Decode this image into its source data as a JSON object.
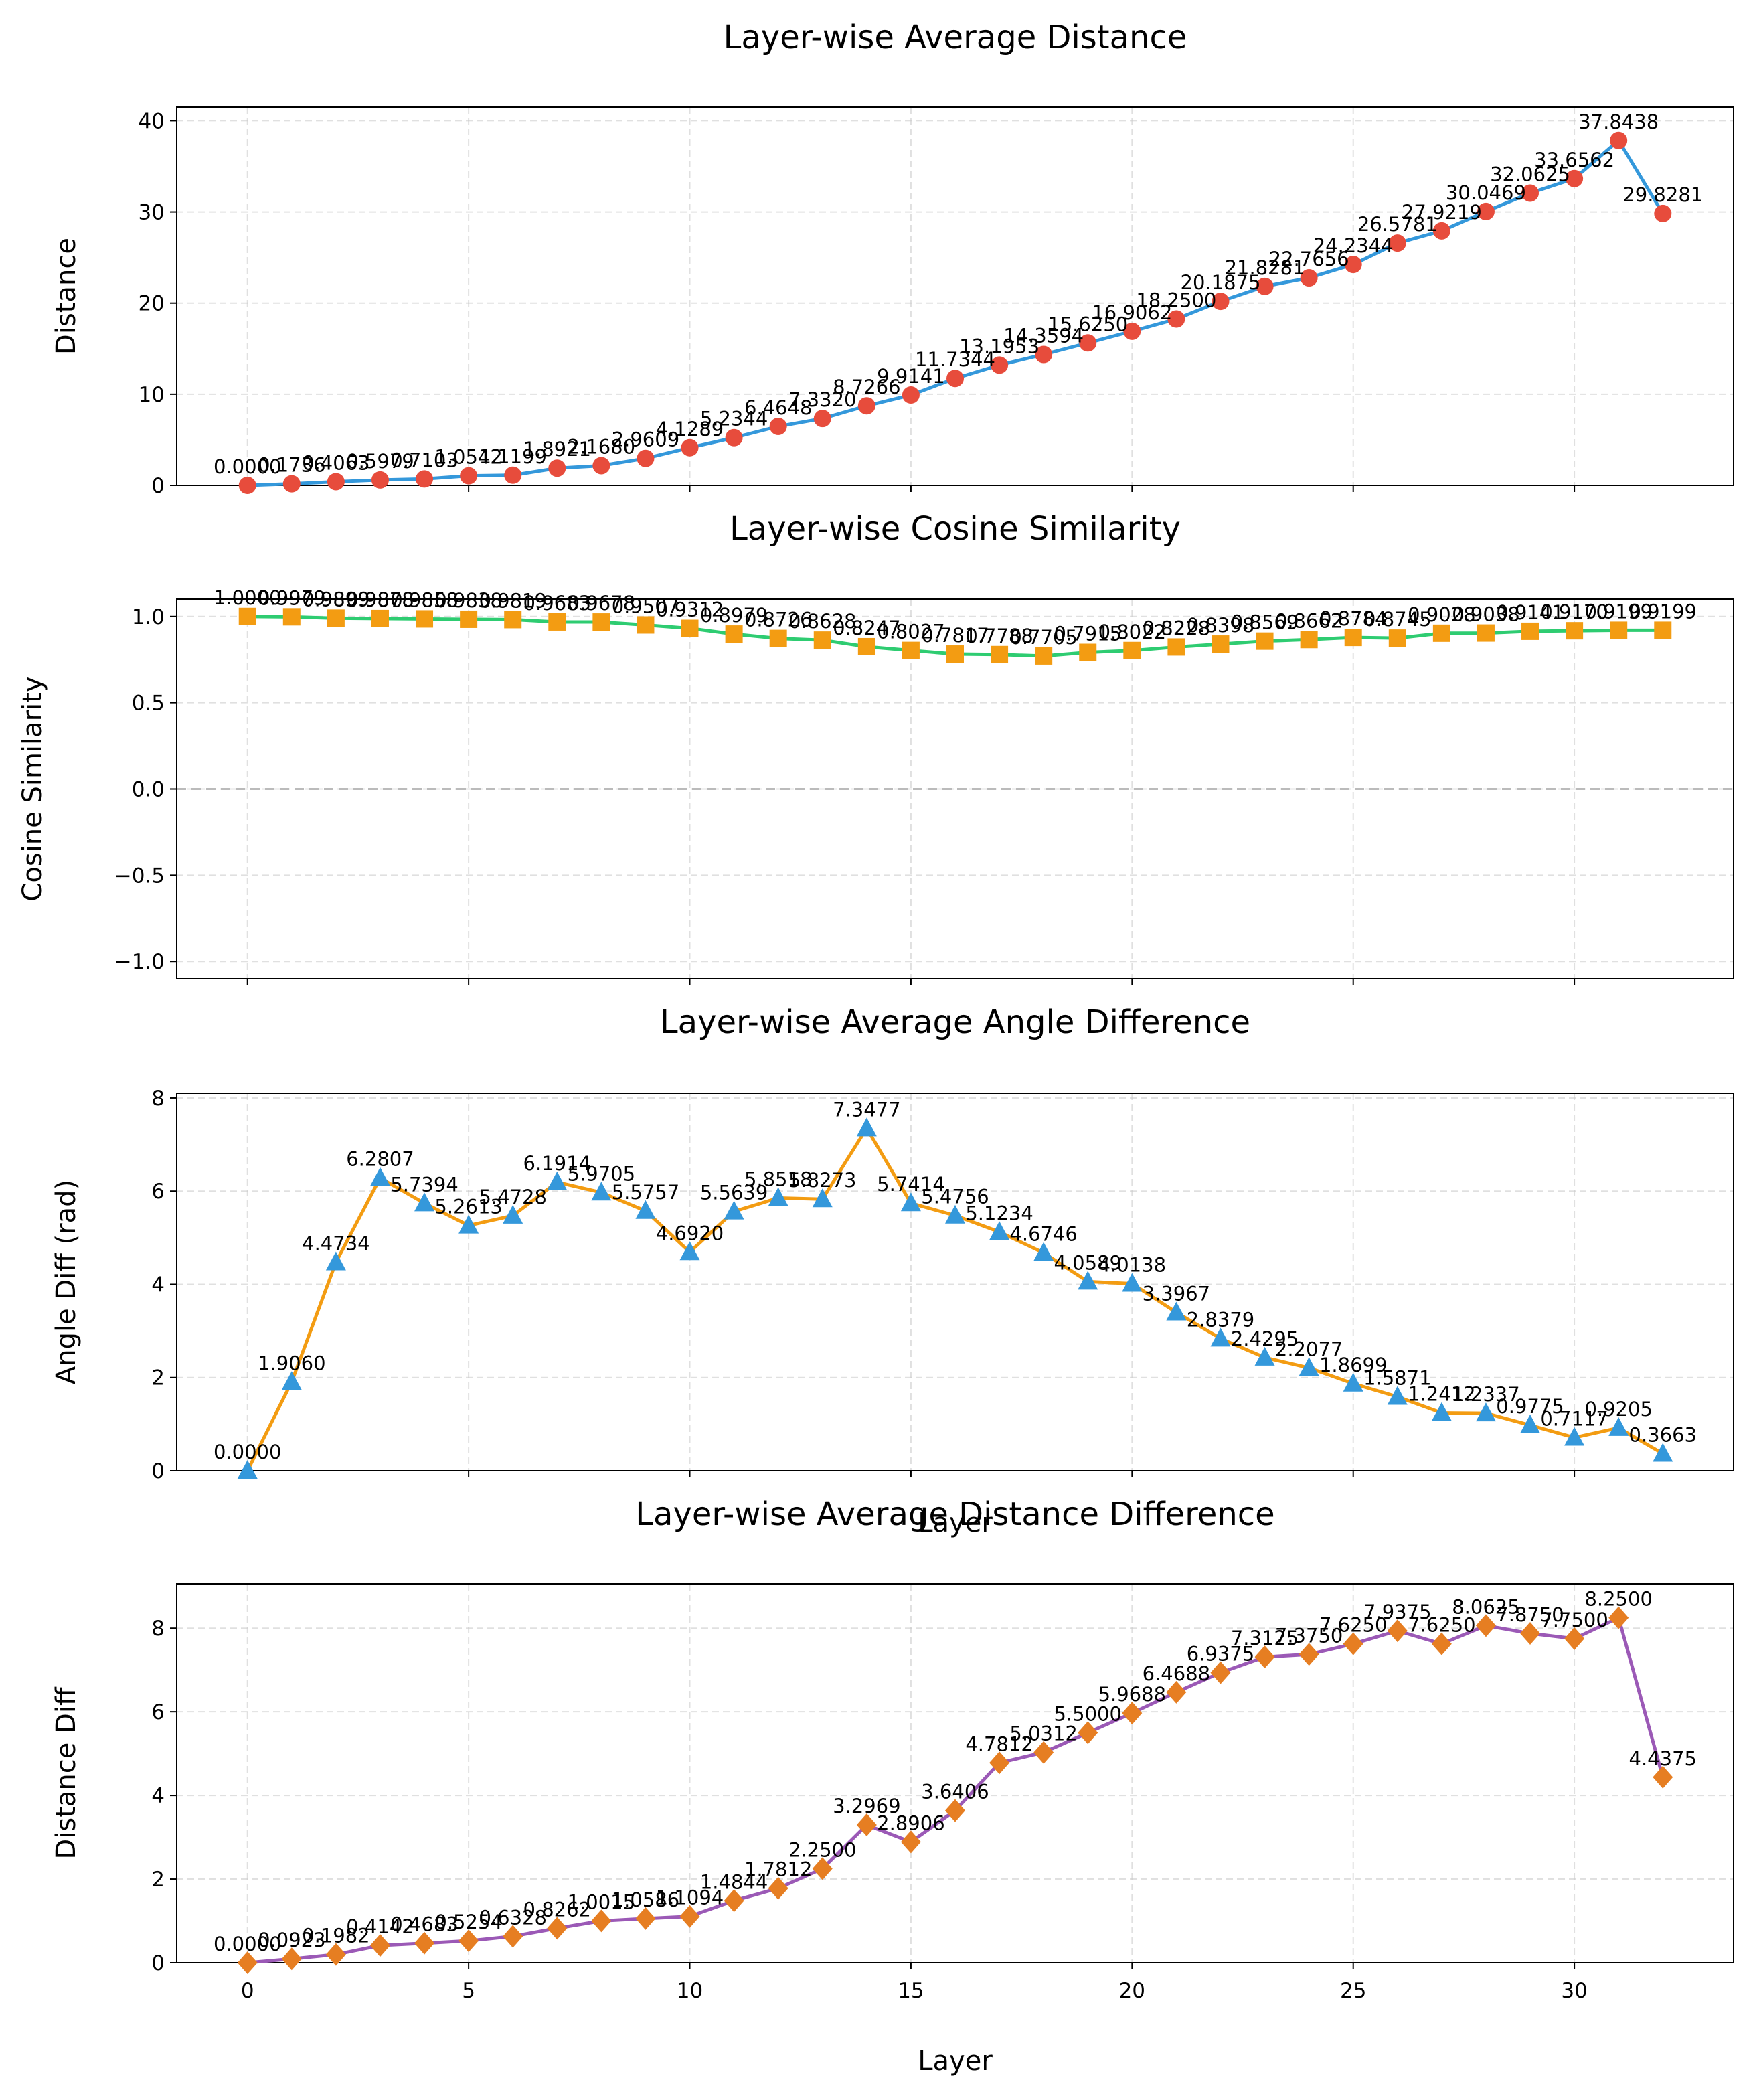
{
  "figure": {
    "layer_label": "Layer",
    "colors": {
      "distance_line": "#3498db",
      "distance_marker": "#e74c3c",
      "cosine_line": "#2ecc71",
      "cosine_marker": "#f39c12",
      "angle_line": "#f39c12",
      "angle_marker": "#3498db",
      "distdiff_line": "#9b59b6",
      "distdiff_marker": "#e67e22",
      "grid": "#cccccc",
      "zero_line": "#bbbbbb"
    }
  },
  "chart_data": [
    {
      "type": "line",
      "title": "Layer-wise Average Distance",
      "xlabel": "",
      "ylabel": "Distance",
      "marker": "circle",
      "x": [
        0,
        1,
        2,
        3,
        4,
        5,
        6,
        7,
        8,
        9,
        10,
        11,
        12,
        13,
        14,
        15,
        16,
        17,
        18,
        19,
        20,
        21,
        22,
        23,
        24,
        25,
        26,
        27,
        28,
        29,
        30,
        31,
        32
      ],
      "values": [
        0.0,
        0.1736,
        0.4063,
        0.5979,
        0.7103,
        1.0542,
        1.1199,
        1.8921,
        2.168,
        2.9609,
        4.1289,
        5.2344,
        6.4648,
        7.332,
        8.7266,
        9.9141,
        11.7344,
        13.1953,
        14.3594,
        15.625,
        16.9062,
        18.25,
        20.1875,
        21.8281,
        22.7656,
        24.2344,
        26.5781,
        27.9219,
        30.0469,
        32.0625,
        33.6562,
        37.8438,
        29.8281
      ],
      "labels": [
        "0.0000",
        "0.1736",
        "0.4063",
        "0.5979",
        "0.7103",
        "1.0542",
        "1.1199",
        "1.8921",
        "2.1680",
        "2.9609",
        "4.1289",
        "5.2344",
        "6.4648",
        "7.3320",
        "8.7266",
        "9.9141",
        "11.7344",
        "13.1953",
        "14.3594",
        "15.6250",
        "16.9062",
        "18.2500",
        "20.1875",
        "21.8281",
        "22.7656",
        "24.2344",
        "26.5781",
        "27.9219",
        "30.0469",
        "32.0625",
        "33.6562",
        "37.8438",
        "29.8281"
      ],
      "ylim": [
        0,
        41.5
      ],
      "yticks": [
        0,
        10,
        20,
        30,
        40
      ],
      "ytick_labels": [
        "0",
        "10",
        "20",
        "30",
        "40"
      ],
      "grid": true
    },
    {
      "type": "line",
      "title": "Layer-wise Cosine Similarity",
      "xlabel": "",
      "ylabel": "Cosine Similarity",
      "marker": "square",
      "x": [
        0,
        1,
        2,
        3,
        4,
        5,
        6,
        7,
        8,
        9,
        10,
        11,
        12,
        13,
        14,
        15,
        16,
        17,
        18,
        19,
        20,
        21,
        22,
        23,
        24,
        25,
        26,
        27,
        28,
        29,
        30,
        31,
        32
      ],
      "values": [
        1.0,
        0.9979,
        0.9899,
        0.9878,
        0.9858,
        0.9838,
        0.9819,
        0.9683,
        0.9678,
        0.9507,
        0.9312,
        0.8979,
        0.8726,
        0.8628,
        0.8247,
        0.8027,
        0.7817,
        0.7788,
        0.7705,
        0.7915,
        0.8022,
        0.8228,
        0.8398,
        0.8569,
        0.8662,
        0.8784,
        0.8745,
        0.9028,
        0.9038,
        0.9141,
        0.917,
        0.9199,
        0.9199
      ],
      "labels": [
        "1.0000",
        "0.9979",
        "0.9899",
        "0.9878",
        "0.9858",
        "0.9838",
        "0.9819",
        "0.9683",
        "0.9678",
        "0.9507",
        "0.9312",
        "0.8979",
        "0.8726",
        "0.8628",
        "0.8247",
        "0.8027",
        "0.7817",
        "0.7788",
        "0.7705",
        "0.7915",
        "0.8022",
        "0.8228",
        "0.8398",
        "0.8569",
        "0.8662",
        "0.8784",
        "0.8745",
        "0.9028",
        "0.9038",
        "0.9141",
        "0.9170",
        "0.9199",
        "0.9199"
      ],
      "ylim": [
        -1.1,
        1.1
      ],
      "yticks": [
        -1.0,
        -0.5,
        0.0,
        0.5,
        1.0
      ],
      "ytick_labels": [
        "−1.0",
        "−0.5",
        "0.0",
        "0.5",
        "1.0"
      ],
      "reference_line": 0.0,
      "grid": true
    },
    {
      "type": "line",
      "title": "Layer-wise Average Angle Difference",
      "xlabel": "Layer",
      "ylabel": "Angle Diff (rad)",
      "marker": "triangle",
      "x": [
        0,
        1,
        2,
        3,
        4,
        5,
        6,
        7,
        8,
        9,
        10,
        11,
        12,
        13,
        14,
        15,
        16,
        17,
        18,
        19,
        20,
        21,
        22,
        23,
        24,
        25,
        26,
        27,
        28,
        29,
        30,
        31,
        32
      ],
      "values": [
        0.0,
        1.906,
        4.4734,
        6.2807,
        5.7394,
        5.2613,
        5.4728,
        6.1914,
        5.9705,
        5.5757,
        4.692,
        5.5639,
        5.8518,
        5.8273,
        7.3477,
        5.7414,
        5.4756,
        5.1234,
        4.6746,
        4.0589,
        4.0138,
        3.3967,
        2.8379,
        2.4295,
        2.2077,
        1.8699,
        1.5871,
        1.2412,
        1.2337,
        0.9775,
        0.7117,
        0.9205,
        0.3663
      ],
      "labels": [
        "0.0000",
        "1.9060",
        "4.4734",
        "6.2807",
        "5.7394",
        "5.2613",
        "5.4728",
        "6.1914",
        "5.9705",
        "5.5757",
        "4.6920",
        "5.5639",
        "5.8518",
        "5.8273",
        "7.3477",
        "5.7414",
        "5.4756",
        "5.1234",
        "4.6746",
        "4.0589",
        "4.0138",
        "3.3967",
        "2.8379",
        "2.4295",
        "2.2077",
        "1.8699",
        "1.5871",
        "1.2412",
        "1.2337",
        "0.9775",
        "0.7117",
        "0.9205",
        "0.3663"
      ],
      "ylim": [
        0,
        8.1
      ],
      "yticks": [
        0,
        2,
        4,
        6,
        8
      ],
      "ytick_labels": [
        "0",
        "2",
        "4",
        "6",
        "8"
      ],
      "grid": true
    },
    {
      "type": "line",
      "title": "Layer-wise Average Distance Difference",
      "xlabel": "Layer",
      "ylabel": "Distance Diff",
      "marker": "diamond",
      "x": [
        0,
        1,
        2,
        3,
        4,
        5,
        6,
        7,
        8,
        9,
        10,
        11,
        12,
        13,
        14,
        15,
        16,
        17,
        18,
        19,
        20,
        21,
        22,
        23,
        24,
        25,
        26,
        27,
        28,
        29,
        30,
        31,
        32
      ],
      "values": [
        0.0,
        0.0923,
        0.1982,
        0.4142,
        0.4683,
        0.5254,
        0.6328,
        0.8262,
        1.0015,
        1.0586,
        1.1094,
        1.4844,
        1.7812,
        2.25,
        3.2969,
        2.8906,
        3.6406,
        4.7812,
        5.0312,
        5.5,
        5.9688,
        6.4688,
        6.9375,
        7.3125,
        7.375,
        7.625,
        7.9375,
        7.625,
        8.0625,
        7.875,
        7.75,
        8.25,
        4.4375
      ],
      "labels": [
        "0.0000",
        "0.0923",
        "0.1982",
        "0.4142",
        "0.4683",
        "0.5254",
        "0.6328",
        "0.8262",
        "1.0015",
        "1.0586",
        "1.1094",
        "1.4844",
        "1.7812",
        "2.2500",
        "3.2969",
        "2.8906",
        "3.6406",
        "4.7812",
        "5.0312",
        "5.5000",
        "5.9688",
        "6.4688",
        "6.9375",
        "7.3125",
        "7.3750",
        "7.6250",
        "7.9375",
        "7.6250",
        "8.0625",
        "7.8750",
        "7.7500",
        "8.2500",
        "4.4375"
      ],
      "ylim": [
        0,
        9.06
      ],
      "yticks": [
        0,
        2,
        4,
        6,
        8
      ],
      "ytick_labels": [
        "0",
        "2",
        "4",
        "6",
        "8"
      ],
      "grid": true
    }
  ],
  "x_axis": {
    "xlim": [
      -1.6,
      33.6
    ],
    "ticks": [
      0,
      5,
      10,
      15,
      20,
      25,
      30
    ],
    "tick_labels": [
      "0",
      "5",
      "10",
      "15",
      "20",
      "25",
      "30"
    ]
  }
}
